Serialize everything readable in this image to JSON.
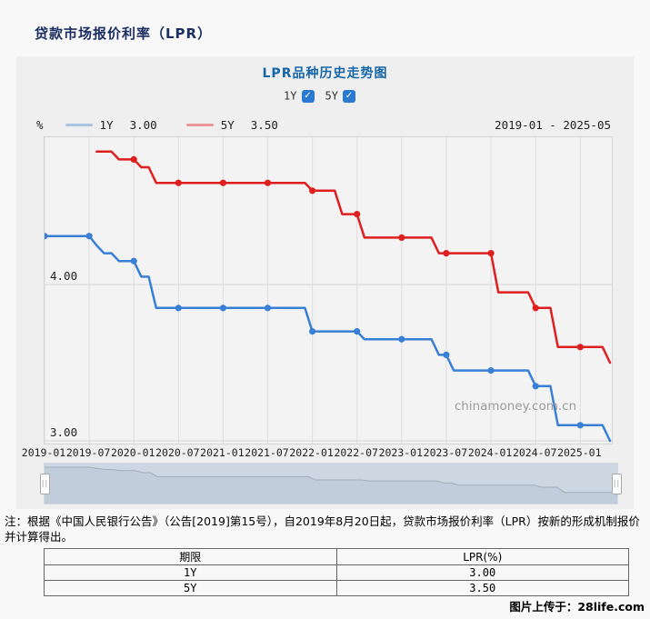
{
  "page": {
    "title": "贷款市场报价利率（LPR）",
    "watermark": "chinamoney.com.cn",
    "credit": "图片上传于：28life.com"
  },
  "chart": {
    "title": "LPR品种历史走势图",
    "unit": "%",
    "date_range": "2019-01 - 2025-05",
    "checkboxes": [
      {
        "label": "1Y",
        "checked": true
      },
      {
        "label": "5Y",
        "checked": true
      }
    ],
    "legend": [
      {
        "label": "1Y",
        "value": "3.00",
        "color": "#a9c3e3"
      },
      {
        "label": "5Y",
        "value": "3.50",
        "color": "#ee9595"
      }
    ],
    "accent_colors": {
      "title_blue": "#1565a8",
      "checkbox_blue": "#2a7ad2",
      "line_1y": "#3a7fd6",
      "line_5y": "#dd1f1f"
    }
  },
  "chart_data": {
    "type": "line",
    "title": "LPR品种历史走势图",
    "ylabel": "%",
    "x_unit": "month",
    "x_start": "2019-01",
    "x_end": "2025-05",
    "x_tick_labels": [
      "2019-01",
      "2019-07",
      "2020-01",
      "2020-07",
      "2021-01",
      "2021-07",
      "2022-01",
      "2022-07",
      "2023-01",
      "2023-07",
      "2024-01",
      "2024-07",
      "2025-01"
    ],
    "y_ticks": [
      3.0,
      4.0
    ],
    "ylim": [
      2.98,
      4.94
    ],
    "grid": true,
    "marker_every_months": 6,
    "series": [
      {
        "name": "1Y",
        "color": "#3a7fd6",
        "values": [
          4.31,
          4.31,
          4.31,
          4.31,
          4.31,
          4.31,
          4.31,
          4.25,
          4.2,
          4.2,
          4.15,
          4.15,
          4.15,
          4.05,
          4.05,
          3.85,
          3.85,
          3.85,
          3.85,
          3.85,
          3.85,
          3.85,
          3.85,
          3.85,
          3.85,
          3.85,
          3.85,
          3.85,
          3.85,
          3.85,
          3.85,
          3.85,
          3.85,
          3.85,
          3.85,
          3.85,
          3.7,
          3.7,
          3.7,
          3.7,
          3.7,
          3.7,
          3.7,
          3.65,
          3.65,
          3.65,
          3.65,
          3.65,
          3.65,
          3.65,
          3.65,
          3.65,
          3.65,
          3.55,
          3.55,
          3.45,
          3.45,
          3.45,
          3.45,
          3.45,
          3.45,
          3.45,
          3.45,
          3.45,
          3.45,
          3.45,
          3.35,
          3.35,
          3.35,
          3.1,
          3.1,
          3.1,
          3.1,
          3.1,
          3.1,
          3.1,
          3.0
        ]
      },
      {
        "name": "5Y",
        "color": "#dd1f1f",
        "values": [
          null,
          null,
          null,
          null,
          null,
          null,
          null,
          4.85,
          4.85,
          4.85,
          4.8,
          4.8,
          4.8,
          4.75,
          4.75,
          4.65,
          4.65,
          4.65,
          4.65,
          4.65,
          4.65,
          4.65,
          4.65,
          4.65,
          4.65,
          4.65,
          4.65,
          4.65,
          4.65,
          4.65,
          4.65,
          4.65,
          4.65,
          4.65,
          4.65,
          4.65,
          4.6,
          4.6,
          4.6,
          4.6,
          4.45,
          4.45,
          4.45,
          4.3,
          4.3,
          4.3,
          4.3,
          4.3,
          4.3,
          4.3,
          4.3,
          4.3,
          4.3,
          4.2,
          4.2,
          4.2,
          4.2,
          4.2,
          4.2,
          4.2,
          4.2,
          3.95,
          3.95,
          3.95,
          3.95,
          3.95,
          3.85,
          3.85,
          3.85,
          3.6,
          3.6,
          3.6,
          3.6,
          3.6,
          3.6,
          3.6,
          3.5
        ]
      }
    ]
  },
  "navigator": {
    "bg": "#cdd7e2",
    "area_fill": "#c1cdda",
    "line": "#9fadbd"
  },
  "note": {
    "line1": "注：根据《中国人民银行公告》（公告[2019]第15号），自2019年8月20日起，贷款市场报价利率（LPR）按新的形成机制报价",
    "line2": "并计算得出。"
  },
  "table": {
    "headers": [
      "期限",
      "LPR(%)"
    ],
    "rows": [
      [
        "1Y",
        "3.00"
      ],
      [
        "5Y",
        "3.50"
      ]
    ]
  }
}
